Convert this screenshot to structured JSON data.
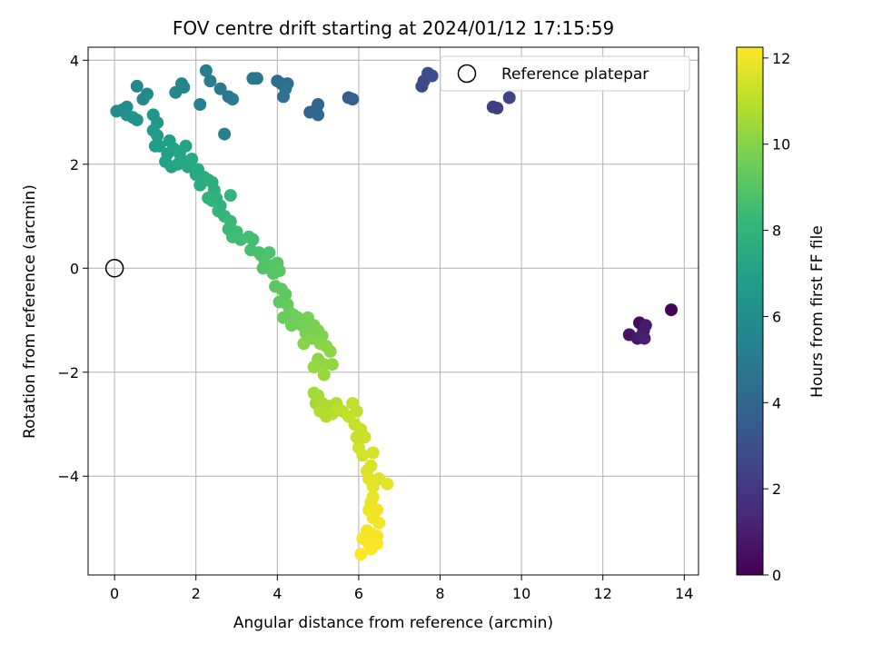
{
  "chart_data": {
    "type": "scatter",
    "title": "FOV centre drift starting at 2024/01/12 17:15:59",
    "xlabel": "Angular distance from reference (arcmin)",
    "ylabel": "Rotation from reference (arcmin)",
    "xlim": [
      -0.65,
      14.35
    ],
    "ylim": [
      -5.9,
      4.25
    ],
    "xticks": [
      0,
      2,
      4,
      6,
      8,
      10,
      12,
      14
    ],
    "xtick_labels": [
      "0",
      "2",
      "4",
      "6",
      "8",
      "10",
      "12",
      "14"
    ],
    "yticks": [
      -4,
      -2,
      0,
      2,
      4
    ],
    "ytick_labels": [
      "−4",
      "−2",
      "0",
      "2",
      "4"
    ],
    "grid": true,
    "legend": {
      "placement": "top-right",
      "entries": [
        "Reference platepar"
      ]
    },
    "reference_point": {
      "name": "Reference platepar",
      "x": 0,
      "y": 0
    },
    "colorbar": {
      "label": "Hours from first FF file",
      "range": [
        0,
        12.25
      ],
      "ticks": [
        0,
        2,
        4,
        6,
        8,
        10,
        12
      ],
      "tick_labels": [
        "0",
        "2",
        "4",
        "6",
        "8",
        "10",
        "12"
      ],
      "colormap": "viridis",
      "colors": [
        "#440154",
        "#482878",
        "#3e4989",
        "#31688e",
        "#26828e",
        "#1f9e89",
        "#35b779",
        "#6ece58",
        "#b5de2b",
        "#fde725"
      ]
    },
    "series": [
      {
        "points": [
          [
            13.68,
            -0.8,
            0.1
          ],
          [
            12.9,
            -1.05,
            0.3
          ],
          [
            13.0,
            -1.2,
            0.5
          ],
          [
            12.65,
            -1.28,
            0.6
          ],
          [
            12.85,
            -1.35,
            0.8
          ],
          [
            13.05,
            -1.1,
            0.9
          ],
          [
            12.95,
            -1.3,
            1.0
          ],
          [
            13.02,
            -1.35,
            1.1
          ],
          [
            9.3,
            3.1,
            2.2
          ],
          [
            9.4,
            3.08,
            2.3
          ],
          [
            9.7,
            3.28,
            2.5
          ],
          [
            7.55,
            3.5,
            2.7
          ],
          [
            7.6,
            3.6,
            2.8
          ],
          [
            7.7,
            3.75,
            2.9
          ],
          [
            7.8,
            3.7,
            3.0
          ],
          [
            5.75,
            3.28,
            3.6
          ],
          [
            5.85,
            3.25,
            3.7
          ],
          [
            4.8,
            3.0,
            3.9
          ],
          [
            4.95,
            3.05,
            4.0
          ],
          [
            5.0,
            3.15,
            4.05
          ],
          [
            5.0,
            2.95,
            4.1
          ],
          [
            4.1,
            3.55,
            4.2
          ],
          [
            4.25,
            3.55,
            4.3
          ],
          [
            4.0,
            3.6,
            4.4
          ],
          [
            4.15,
            3.3,
            4.5
          ],
          [
            4.2,
            3.45,
            4.6
          ],
          [
            3.5,
            3.65,
            4.7
          ],
          [
            3.4,
            3.65,
            4.8
          ],
          [
            2.8,
            3.3,
            4.9
          ],
          [
            2.6,
            3.45,
            5.0
          ],
          [
            2.9,
            3.25,
            5.1
          ],
          [
            2.35,
            3.6,
            5.2
          ],
          [
            2.25,
            3.8,
            5.3
          ],
          [
            2.7,
            2.58,
            5.35
          ],
          [
            2.1,
            3.15,
            5.45
          ],
          [
            1.65,
            3.55,
            5.55
          ],
          [
            1.7,
            3.48,
            5.6
          ],
          [
            1.5,
            3.38,
            5.65
          ],
          [
            0.55,
            3.5,
            5.7
          ],
          [
            0.7,
            3.25,
            5.8
          ],
          [
            0.8,
            3.35,
            5.9
          ],
          [
            0.05,
            3.02,
            6.0
          ],
          [
            0.2,
            3.05,
            6.05
          ],
          [
            0.3,
            3.1,
            6.1
          ],
          [
            0.3,
            2.95,
            6.2
          ],
          [
            0.45,
            2.9,
            6.3
          ],
          [
            0.55,
            2.85,
            6.35
          ],
          [
            0.95,
            2.95,
            6.4
          ],
          [
            1.05,
            2.8,
            6.5
          ],
          [
            0.95,
            2.65,
            6.6
          ],
          [
            1.05,
            2.55,
            6.7
          ],
          [
            1.0,
            2.35,
            6.75
          ],
          [
            1.1,
            2.35,
            6.8
          ],
          [
            1.35,
            2.45,
            6.85
          ],
          [
            1.3,
            2.2,
            6.9
          ],
          [
            1.45,
            2.3,
            6.95
          ],
          [
            1.25,
            2.05,
            7.0
          ],
          [
            1.4,
            1.95,
            7.05
          ],
          [
            1.6,
            2.2,
            7.1
          ],
          [
            1.75,
            2.35,
            7.15
          ],
          [
            1.55,
            2.0,
            7.2
          ],
          [
            1.7,
            2.05,
            7.25
          ],
          [
            1.8,
            1.95,
            7.3
          ],
          [
            1.9,
            2.1,
            7.35
          ],
          [
            2.0,
            1.8,
            7.4
          ],
          [
            2.05,
            1.9,
            7.45
          ],
          [
            2.2,
            1.75,
            7.5
          ],
          [
            2.1,
            1.6,
            7.55
          ],
          [
            2.3,
            1.7,
            7.6
          ],
          [
            2.4,
            1.65,
            7.7
          ],
          [
            2.45,
            1.5,
            7.75
          ],
          [
            2.3,
            1.35,
            7.8
          ],
          [
            2.5,
            1.35,
            7.85
          ],
          [
            2.6,
            1.2,
            7.9
          ],
          [
            2.4,
            1.3,
            7.95
          ],
          [
            2.85,
            1.4,
            8.0
          ],
          [
            2.55,
            1.1,
            8.05
          ],
          [
            2.7,
            1.0,
            8.1
          ],
          [
            2.85,
            0.9,
            8.2
          ],
          [
            2.8,
            0.75,
            8.3
          ],
          [
            3.0,
            0.7,
            8.35
          ],
          [
            2.9,
            0.6,
            8.4
          ],
          [
            3.1,
            0.55,
            8.45
          ],
          [
            3.3,
            0.6,
            8.5
          ],
          [
            3.4,
            0.55,
            8.55
          ],
          [
            3.35,
            0.35,
            8.6
          ],
          [
            3.55,
            0.3,
            8.65
          ],
          [
            3.6,
            0.25,
            8.7
          ],
          [
            3.8,
            0.3,
            8.75
          ],
          [
            3.7,
            0.1,
            8.8
          ],
          [
            3.85,
            0.05,
            8.85
          ],
          [
            3.65,
            0.0,
            8.9
          ],
          [
            4.0,
            0.1,
            8.95
          ],
          [
            3.9,
            -0.1,
            9.0
          ],
          [
            4.05,
            -0.05,
            9.05
          ],
          [
            3.95,
            -0.35,
            9.1
          ],
          [
            4.1,
            -0.4,
            9.15
          ],
          [
            4.2,
            -0.5,
            9.2
          ],
          [
            4.05,
            -0.65,
            9.25
          ],
          [
            4.25,
            -0.7,
            9.3
          ],
          [
            4.3,
            -0.85,
            9.35
          ],
          [
            4.15,
            -0.95,
            9.4
          ],
          [
            4.4,
            -0.9,
            9.45
          ],
          [
            4.5,
            -0.95,
            9.5
          ],
          [
            4.35,
            -1.1,
            9.55
          ],
          [
            4.6,
            -1.1,
            9.6
          ],
          [
            4.75,
            -0.95,
            9.65
          ],
          [
            4.9,
            -1.1,
            9.7
          ],
          [
            4.7,
            -1.25,
            9.75
          ],
          [
            5.0,
            -1.2,
            9.8
          ],
          [
            5.1,
            -1.3,
            9.85
          ],
          [
            4.85,
            -1.35,
            9.9
          ],
          [
            4.65,
            -1.45,
            9.95
          ],
          [
            5.05,
            -1.45,
            10.0
          ],
          [
            5.2,
            -1.5,
            10.05
          ],
          [
            5.3,
            -1.6,
            10.1
          ],
          [
            5.0,
            -1.75,
            10.15
          ],
          [
            5.35,
            -1.85,
            10.2
          ],
          [
            5.15,
            -1.85,
            10.25
          ],
          [
            4.9,
            -1.9,
            10.3
          ],
          [
            5.15,
            -2.05,
            10.35
          ],
          [
            4.9,
            -2.4,
            10.5
          ],
          [
            5.0,
            -2.45,
            10.55
          ],
          [
            4.95,
            -2.6,
            10.6
          ],
          [
            5.1,
            -2.6,
            10.65
          ],
          [
            5.25,
            -2.65,
            10.7
          ],
          [
            5.45,
            -2.6,
            10.75
          ],
          [
            5.05,
            -2.75,
            10.8
          ],
          [
            5.2,
            -2.85,
            10.85
          ],
          [
            5.35,
            -2.8,
            10.9
          ],
          [
            5.6,
            -2.75,
            10.95
          ],
          [
            5.5,
            -2.7,
            11.0
          ],
          [
            5.85,
            -2.6,
            11.05
          ],
          [
            5.95,
            -2.75,
            11.1
          ],
          [
            5.75,
            -2.85,
            11.15
          ],
          [
            5.9,
            -3.0,
            11.2
          ],
          [
            6.05,
            -3.1,
            11.25
          ],
          [
            5.95,
            -3.25,
            11.3
          ],
          [
            6.15,
            -3.25,
            11.35
          ],
          [
            6.0,
            -3.45,
            11.4
          ],
          [
            6.1,
            -3.6,
            11.45
          ],
          [
            6.35,
            -3.55,
            11.5
          ],
          [
            6.3,
            -3.8,
            11.55
          ],
          [
            6.2,
            -3.9,
            11.6
          ],
          [
            6.5,
            -4.05,
            11.65
          ],
          [
            6.25,
            -4.05,
            11.7
          ],
          [
            6.7,
            -4.15,
            11.75
          ],
          [
            6.35,
            -4.2,
            11.8
          ],
          [
            6.35,
            -4.4,
            11.85
          ],
          [
            6.3,
            -4.5,
            11.9
          ],
          [
            6.25,
            -4.65,
            11.95
          ],
          [
            6.45,
            -4.65,
            12.0
          ],
          [
            6.35,
            -4.8,
            12.02
          ],
          [
            6.5,
            -4.9,
            12.05
          ],
          [
            6.2,
            -5.05,
            12.08
          ],
          [
            6.3,
            -5.1,
            12.1
          ],
          [
            6.45,
            -5.15,
            12.12
          ],
          [
            6.1,
            -5.2,
            12.15
          ],
          [
            6.25,
            -5.3,
            12.18
          ],
          [
            6.45,
            -5.3,
            12.2
          ],
          [
            6.3,
            -5.4,
            12.22
          ],
          [
            6.05,
            -5.5,
            12.25
          ]
        ]
      }
    ]
  }
}
